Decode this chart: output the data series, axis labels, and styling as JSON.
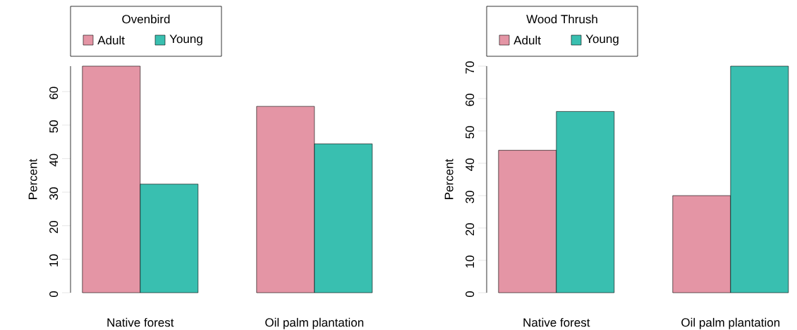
{
  "chart_data": [
    {
      "type": "bar",
      "legend_title": "Ovenbird",
      "ylabel": "Percent",
      "categories": [
        "Native forest",
        "Oil palm plantation"
      ],
      "ylim": [
        0,
        67.6
      ],
      "yticks": [
        0,
        10,
        20,
        30,
        40,
        50,
        60
      ],
      "legend": "top left",
      "series": [
        {
          "name": "Adult",
          "color": "#e495a5",
          "values": [
            67.6,
            55.6
          ]
        },
        {
          "name": "Young",
          "color": "#39bfb0",
          "values": [
            32.4,
            44.4
          ]
        }
      ]
    },
    {
      "type": "bar",
      "legend_title": "Wood Thrush",
      "ylabel": "Percent",
      "categories": [
        "Native forest",
        "Oil palm plantation"
      ],
      "ylim": [
        0,
        70
      ],
      "yticks": [
        0,
        10,
        20,
        30,
        40,
        50,
        60,
        70
      ],
      "legend": "top left",
      "series": [
        {
          "name": "Adult",
          "color": "#e495a5",
          "values": [
            44,
            30
          ]
        },
        {
          "name": "Young",
          "color": "#39bfb0",
          "values": [
            56,
            70
          ]
        }
      ]
    }
  ]
}
